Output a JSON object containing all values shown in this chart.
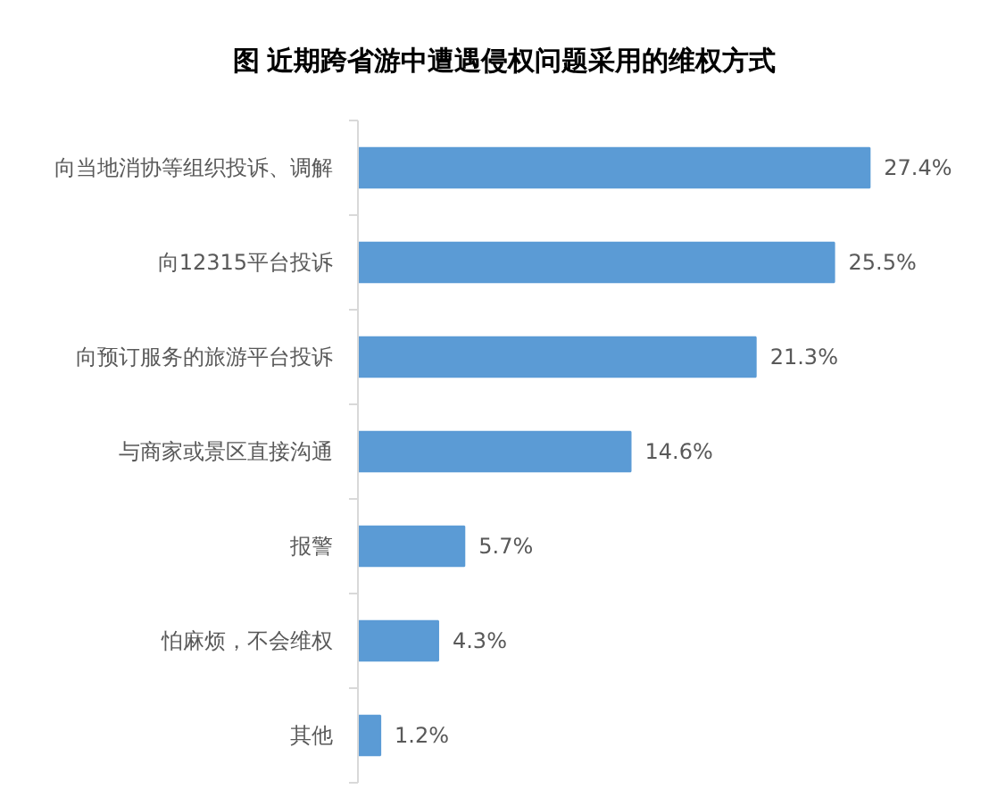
{
  "chart_data": {
    "type": "bar",
    "orientation": "horizontal",
    "title": "图 近期跨省游中遭遇侵权问题采用的维权方式",
    "categories": [
      "向当地消协等组织投诉、调解",
      "向12315平台投诉",
      "向预订服务的旅游平台投诉",
      "与商家或景区直接沟通",
      "报警",
      "怕麻烦，不会维权",
      "其他"
    ],
    "values": [
      27.4,
      25.5,
      21.3,
      14.6,
      5.7,
      4.3,
      1.2
    ],
    "value_labels": [
      "27.4%",
      "25.5%",
      "21.3%",
      "14.6%",
      "5.7%",
      "4.3%",
      "1.2%"
    ],
    "color": "#5b9bd5",
    "grid": false,
    "tick_labels": "y"
  }
}
